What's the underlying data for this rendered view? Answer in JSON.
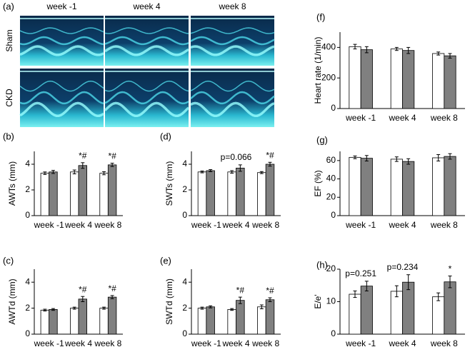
{
  "image_panel": {
    "label": "(a)",
    "columns": [
      "week -1",
      "week 4",
      "week 8"
    ],
    "rows": [
      "Sham",
      "CKD"
    ]
  },
  "chart_data": [
    {
      "type": "bar",
      "label": "(b)",
      "y_label": "AWTs (mm)",
      "categories": [
        "week -1",
        "week 4",
        "week 8"
      ],
      "ylim": [
        0,
        5
      ],
      "yticks": [
        0,
        2,
        4
      ],
      "series": [
        {
          "color": "#ffffff",
          "values": [
            3.3,
            3.4,
            3.3
          ],
          "errors": [
            0.1,
            0.15,
            0.12
          ],
          "labels": [
            null,
            null,
            null
          ]
        },
        {
          "color": "#808080",
          "values": [
            3.4,
            3.9,
            3.95
          ],
          "errors": [
            0.12,
            0.22,
            0.13
          ],
          "labels": [
            null,
            "*#",
            "*#"
          ]
        }
      ],
      "category_annotations": [
        null,
        null,
        null
      ]
    },
    {
      "type": "bar",
      "label": "(c)",
      "y_label": "AWTd (mm)",
      "categories": [
        "week -1",
        "week 4",
        "week 8"
      ],
      "ylim": [
        0,
        5
      ],
      "yticks": [
        0,
        2,
        4
      ],
      "series": [
        {
          "color": "#ffffff",
          "values": [
            1.85,
            2.0,
            2.0
          ],
          "errors": [
            0.07,
            0.08,
            0.08
          ],
          "labels": [
            null,
            null,
            null
          ]
        },
        {
          "color": "#808080",
          "values": [
            1.9,
            2.7,
            2.85
          ],
          "errors": [
            0.07,
            0.2,
            0.12
          ],
          "labels": [
            null,
            "*#",
            "*#"
          ]
        }
      ],
      "category_annotations": [
        null,
        null,
        null
      ]
    },
    {
      "type": "bar",
      "label": "(d)",
      "y_label": "SWTs (mm)",
      "categories": [
        "week -1",
        "week 4",
        "week 8"
      ],
      "ylim": [
        0,
        5
      ],
      "yticks": [
        0,
        2,
        4
      ],
      "series": [
        {
          "color": "#ffffff",
          "values": [
            3.4,
            3.4,
            3.35
          ],
          "errors": [
            0.07,
            0.1,
            0.08
          ],
          "labels": [
            null,
            null,
            null
          ]
        },
        {
          "color": "#808080",
          "values": [
            3.5,
            3.7,
            4.0
          ],
          "errors": [
            0.08,
            0.25,
            0.15
          ],
          "labels": [
            null,
            null,
            "*#"
          ]
        }
      ],
      "category_annotations": [
        null,
        "p=0.066",
        null
      ]
    },
    {
      "type": "bar",
      "label": "(e)",
      "y_label": "SWTd (mm)",
      "categories": [
        "week -1",
        "week 4",
        "week 8"
      ],
      "ylim": [
        0,
        5
      ],
      "yticks": [
        0,
        2,
        4
      ],
      "series": [
        {
          "color": "#ffffff",
          "values": [
            2.0,
            1.9,
            2.1
          ],
          "errors": [
            0.08,
            0.07,
            0.15
          ],
          "labels": [
            null,
            null,
            null
          ]
        },
        {
          "color": "#808080",
          "values": [
            2.1,
            2.6,
            2.65
          ],
          "errors": [
            0.08,
            0.25,
            0.15
          ],
          "labels": [
            null,
            "*#",
            "*#"
          ]
        }
      ],
      "category_annotations": [
        null,
        null,
        null
      ]
    },
    {
      "type": "bar",
      "label": "(f)",
      "y_label": "Heart rate (1/min)",
      "categories": [
        "week -1",
        "week 4",
        "week 8"
      ],
      "ylim": [
        0,
        500
      ],
      "yticks": [
        0,
        200,
        400
      ],
      "series": [
        {
          "color": "#ffffff",
          "values": [
            405,
            390,
            360
          ],
          "errors": [
            15,
            10,
            10
          ],
          "labels": [
            null,
            null,
            null
          ]
        },
        {
          "color": "#808080",
          "values": [
            385,
            380,
            345
          ],
          "errors": [
            20,
            20,
            15
          ],
          "labels": [
            null,
            null,
            null
          ]
        }
      ],
      "category_annotations": [
        null,
        null,
        null
      ]
    },
    {
      "type": "bar",
      "label": "(g)",
      "y_label": "EF (%)",
      "categories": [
        "week -1",
        "week 4",
        "week 8"
      ],
      "ylim": [
        0,
        70
      ],
      "yticks": [
        0,
        20,
        40,
        60
      ],
      "series": [
        {
          "color": "#ffffff",
          "values": [
            63.5,
            61.5,
            63
          ],
          "errors": [
            1.5,
            2.5,
            3.5
          ],
          "labels": [
            null,
            null,
            null
          ]
        },
        {
          "color": "#808080",
          "values": [
            62.5,
            59,
            64.5
          ],
          "errors": [
            3,
            3,
            3
          ],
          "labels": [
            null,
            null,
            null
          ]
        }
      ],
      "category_annotations": [
        null,
        null,
        null
      ]
    },
    {
      "type": "bar",
      "label": "(h)",
      "y_label": "E/e'",
      "categories": [
        "week -1",
        "week 4",
        "week 8"
      ],
      "ylim": [
        0,
        20
      ],
      "yticks": [
        0,
        10,
        20
      ],
      "series": [
        {
          "color": "#ffffff",
          "values": [
            12.3,
            13.2,
            11.5
          ],
          "errors": [
            1,
            1.7,
            1.2
          ],
          "labels": [
            null,
            null,
            null
          ]
        },
        {
          "color": "#808080",
          "values": [
            14.8,
            16,
            16.1
          ],
          "errors": [
            1.5,
            2.3,
            1.8
          ],
          "labels": [
            null,
            null,
            "*"
          ]
        }
      ],
      "category_annotations": [
        "p=0.251",
        "p=0.234",
        null
      ]
    }
  ]
}
